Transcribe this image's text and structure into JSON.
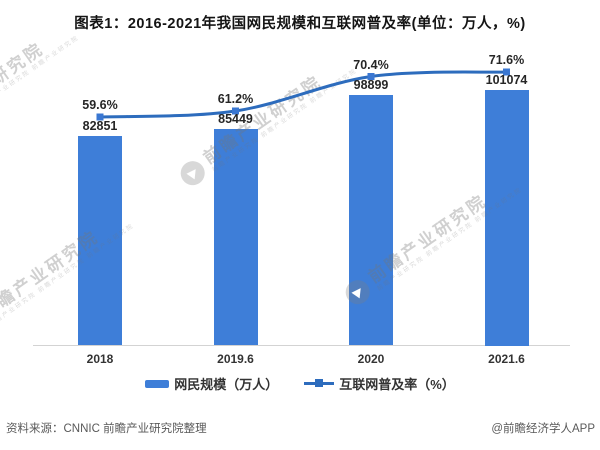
{
  "title": "图表1：2016-2021年我国网民规模和互联网普及率(单位：万人，%)",
  "chart_data": {
    "type": "bar",
    "subtype": "bar+line combo",
    "categories": [
      "2018",
      "2019.6",
      "2020",
      "2021.6"
    ],
    "series": [
      {
        "name": "网民规模（万人）",
        "type": "bar",
        "values": [
          82851,
          85449,
          98899,
          101074
        ],
        "labels": [
          "82851",
          "85449",
          "98899",
          "101074"
        ],
        "color": "#3e7ed8"
      },
      {
        "name": "互联网普及率（%）",
        "type": "line",
        "values": [
          59.6,
          61.2,
          70.4,
          71.6
        ],
        "labels": [
          "59.6%",
          "61.2%",
          "70.4%",
          "71.6%"
        ],
        "color": "#2d6cbd",
        "marker_color": "#3a77d2"
      }
    ],
    "ylim_bar": [
      0,
      101074
    ],
    "grid": false,
    "y_axis_visible": false,
    "legend_position": "bottom"
  },
  "legend": {
    "bar_label": "网民规模（万人）",
    "line_label": "互联网普及率（%）"
  },
  "footer": {
    "source": "资料来源：CNNIC 前瞻产业研究院整理",
    "credit": "@前瞻经济学人APP"
  },
  "watermark": {
    "text": "前瞻产业研究院",
    "subtext": "前瞻产业研究院 前瞻产业研究院 前瞻产业研究院"
  }
}
